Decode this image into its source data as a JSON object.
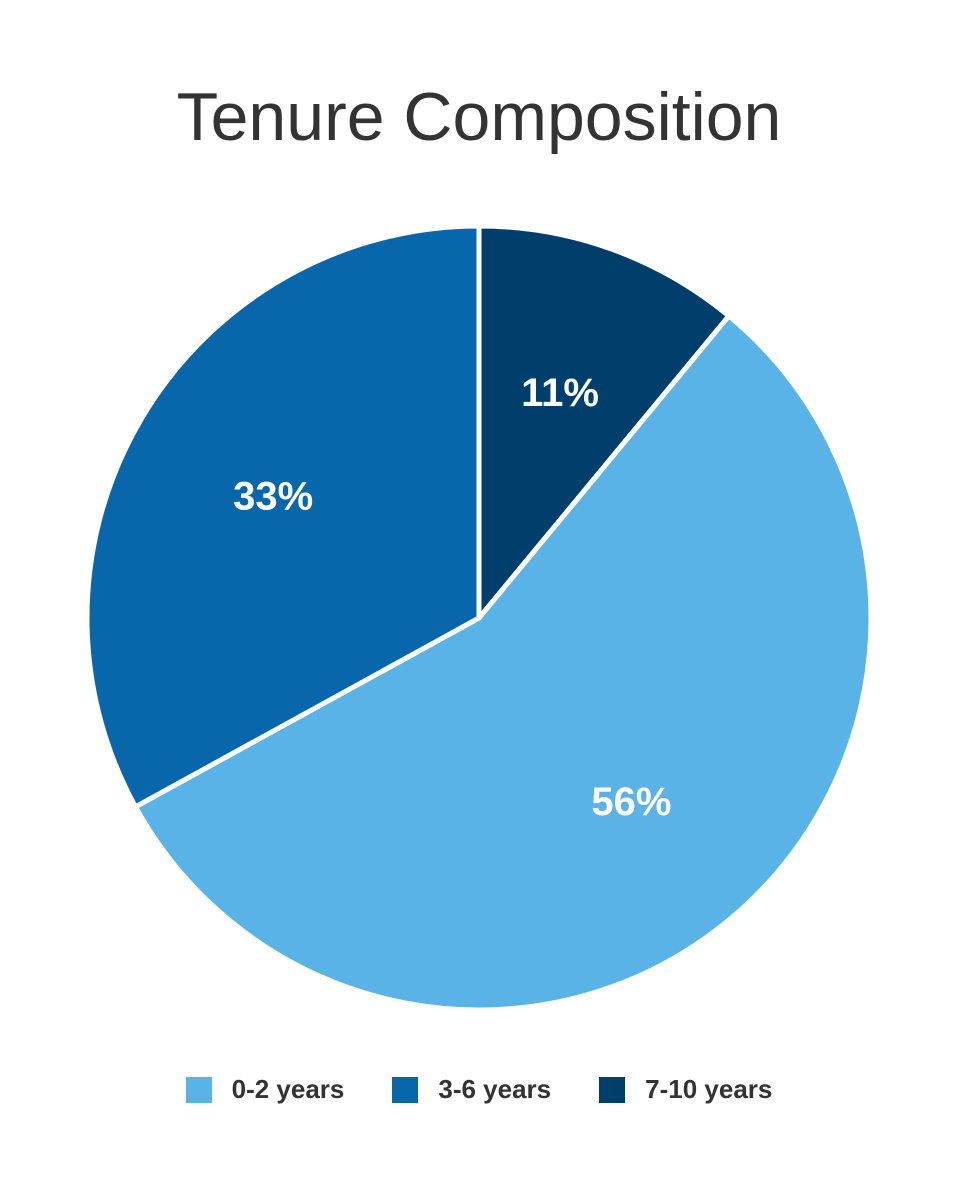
{
  "chart_data": {
    "type": "pie",
    "title": "Tenure Composition",
    "slices": [
      {
        "label": "7-10 years",
        "value": 11,
        "display": "11%",
        "color": "#003f6b"
      },
      {
        "label": "0-2 years",
        "value": 56,
        "display": "56%",
        "color": "#5ab3e6"
      },
      {
        "label": "3-6 years",
        "value": 33,
        "display": "33%",
        "color": "#0867aa"
      }
    ],
    "legend": {
      "position": "bottom",
      "items": [
        {
          "label": "0-2 years",
          "color": "#5ab3e6"
        },
        {
          "label": "3-6 years",
          "color": "#0867aa"
        },
        {
          "label": "7-10 years",
          "color": "#003f6b"
        }
      ]
    }
  }
}
